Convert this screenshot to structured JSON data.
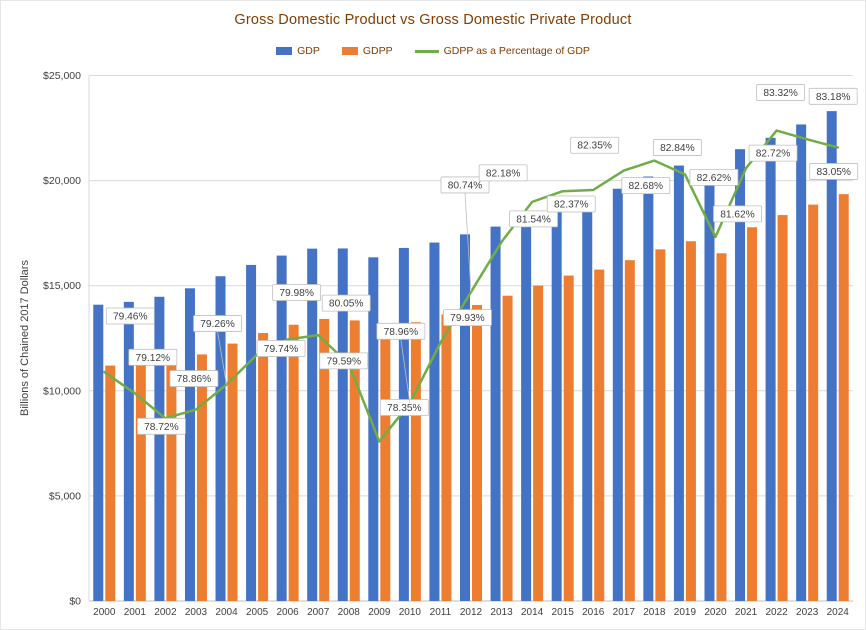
{
  "chart_data": {
    "type": "combo",
    "title": "Gross Domestic Product vs Gross Domestic Private Product",
    "ylabel": "Billions of Chained 2017 Dollars",
    "xlabel": "",
    "ylim": [
      0,
      25000
    ],
    "y_tick_step": 5000,
    "y_ticks": [
      "$0",
      "$5,000",
      "$10,000",
      "$15,000",
      "$20,000",
      "$25,000"
    ],
    "secondary_ylim": [
      75.8,
      84.2
    ],
    "grid": true,
    "legend_position": "top",
    "colors": {
      "title": "#833C00",
      "axis_text": "#404040",
      "grid": "#D9D9D9",
      "axis_line": "#BFBFBF",
      "label_border": "#BFBFBF",
      "label_fill": "#FFFFFF"
    },
    "categories": [
      "2000",
      "2001",
      "2002",
      "2003",
      "2004",
      "2005",
      "2006",
      "2007",
      "2008",
      "2009",
      "2010",
      "2011",
      "2012",
      "2013",
      "2014",
      "2015",
      "2016",
      "2017",
      "2018",
      "2019",
      "2020",
      "2021",
      "2022",
      "2023",
      "2024"
    ],
    "series": [
      {
        "name": "GDP",
        "type": "bar",
        "color": "#4472C4",
        "values": [
          14096,
          14231,
          14473,
          14877,
          15450,
          15988,
          16433,
          16763,
          16772,
          16350,
          16797,
          17053,
          17443,
          17812,
          18262,
          18800,
          19142,
          19612,
          20194,
          20716,
          20268,
          21495,
          22035,
          22671,
          23305
        ]
      },
      {
        "name": "GDPP",
        "type": "bar",
        "color": "#ED7D31",
        "values": [
          11201,
          11259,
          11393,
          11732,
          12246,
          12749,
          13143,
          13419,
          13349,
          12810,
          13263,
          13631,
          14083,
          14524,
          15008,
          15482,
          15767,
          16215,
          16729,
          17115,
          16542,
          17781,
          18360,
          18858,
          19355
        ]
      },
      {
        "name": "GDPP as a Percentage of GDP",
        "type": "line",
        "axis": "secondary",
        "color": "#70AD47",
        "values": [
          79.46,
          79.12,
          78.72,
          78.86,
          79.26,
          79.74,
          79.98,
          80.05,
          79.59,
          78.35,
          78.96,
          79.93,
          80.74,
          81.54,
          82.18,
          82.35,
          82.37,
          82.68,
          82.84,
          82.62,
          81.62,
          82.72,
          83.32,
          83.18,
          83.05
        ],
        "labels": [
          "79.46%",
          "79.12%",
          "78.72%",
          "78.86%",
          "79.26%",
          "79.74%",
          "79.98%",
          "80.05%",
          "79.59%",
          "78.35%",
          "78.96%",
          "79.93%",
          "80.74%",
          "81.54%",
          "82.18%",
          "82.35%",
          "82.37%",
          "82.68%",
          "82.84%",
          "82.62%",
          "81.62%",
          "82.72%",
          "83.32%",
          "83.18%",
          "83.05%"
        ]
      }
    ]
  }
}
